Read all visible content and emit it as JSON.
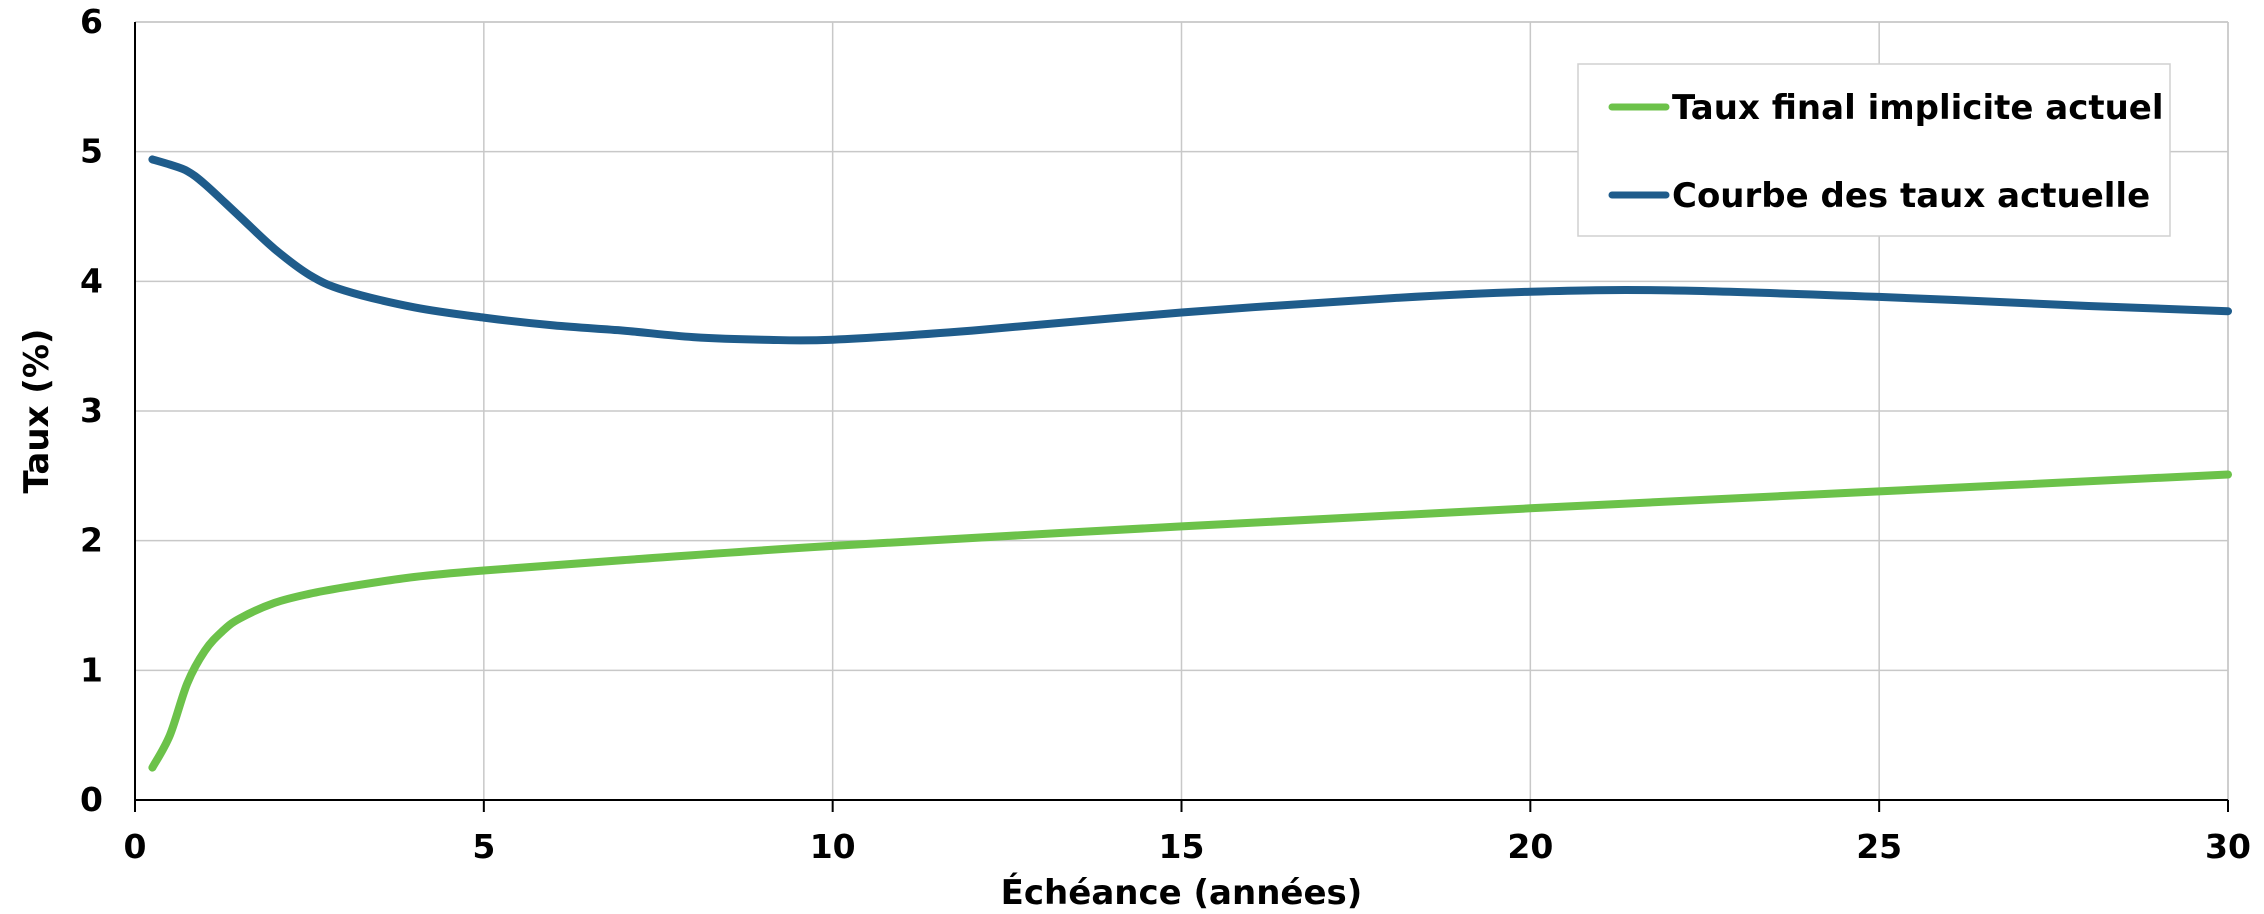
{
  "chart_data": {
    "type": "line",
    "xlabel": "Échéance (années)",
    "ylabel": "Taux (%)",
    "xlim": [
      0,
      30
    ],
    "ylim": [
      0,
      6
    ],
    "xticks": [
      0,
      5,
      10,
      15,
      20,
      25,
      30
    ],
    "yticks": [
      0,
      1,
      2,
      3,
      4,
      5,
      6
    ],
    "grid": true,
    "legend_position": "top-right",
    "series": [
      {
        "name": "Taux final implicite actuel",
        "color": "#6cc24a",
        "x": [
          0.25,
          0.5,
          0.75,
          1,
          1.25,
          1.5,
          2,
          2.5,
          3,
          4,
          5,
          7,
          10,
          15,
          20,
          25,
          30
        ],
        "values": [
          0.25,
          0.5,
          0.9,
          1.15,
          1.3,
          1.4,
          1.52,
          1.59,
          1.64,
          1.72,
          1.77,
          1.85,
          1.96,
          2.11,
          2.25,
          2.38,
          2.51
        ]
      },
      {
        "name": "Courbe des taux actuelle",
        "color": "#1f5c8b",
        "x": [
          0.25,
          0.5,
          0.75,
          1,
          1.5,
          2,
          2.5,
          3,
          4,
          5,
          6,
          7,
          8,
          9,
          10,
          12,
          15,
          18,
          20,
          22,
          25,
          28,
          30
        ],
        "values": [
          4.94,
          4.9,
          4.85,
          4.75,
          4.5,
          4.25,
          4.05,
          3.93,
          3.8,
          3.72,
          3.66,
          3.62,
          3.57,
          3.55,
          3.55,
          3.62,
          3.76,
          3.87,
          3.92,
          3.93,
          3.88,
          3.81,
          3.77
        ]
      }
    ]
  }
}
